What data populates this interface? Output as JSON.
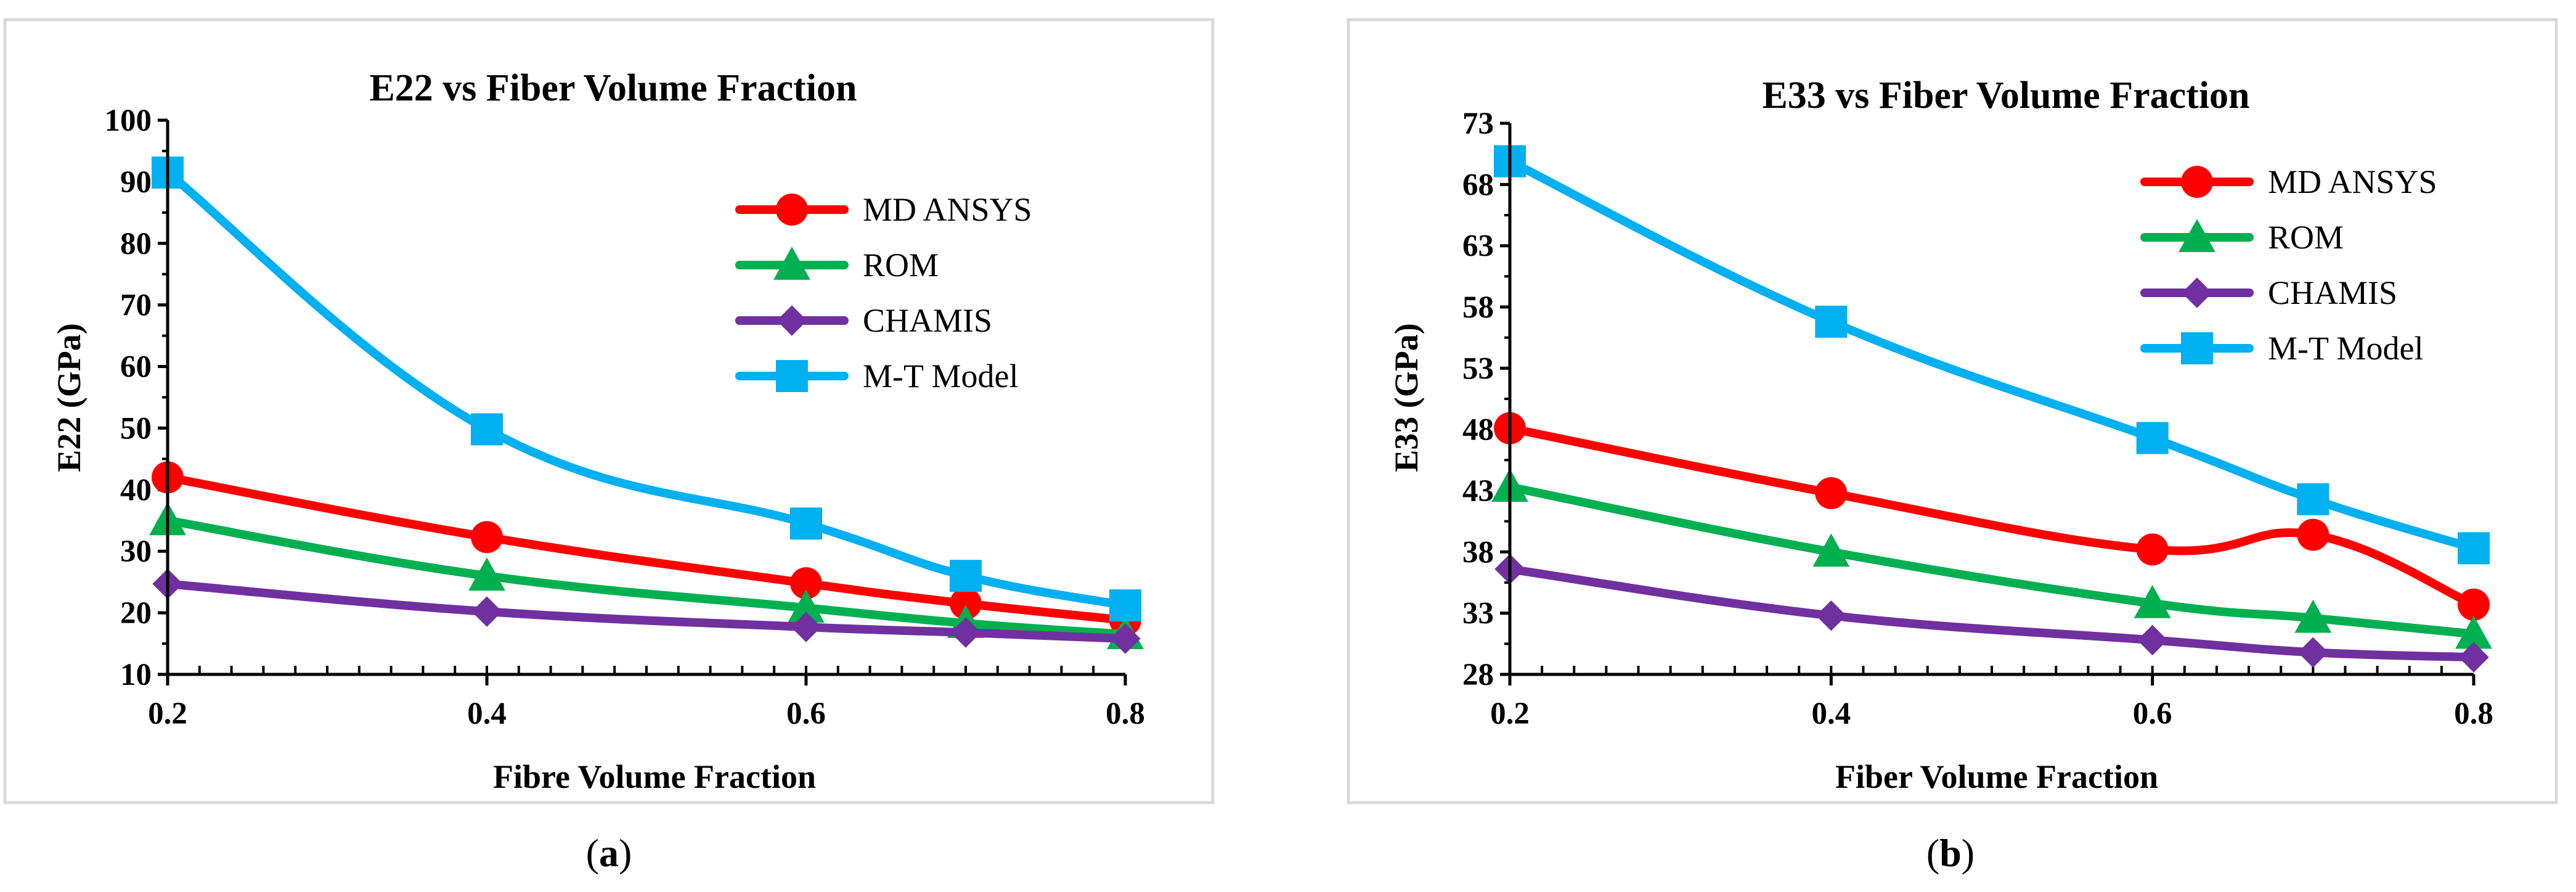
{
  "figure": {
    "captions": [
      {
        "open": "(",
        "letter": "a",
        "close": ")"
      },
      {
        "open": "(",
        "letter": "b",
        "close": ")"
      }
    ]
  },
  "chart_data": [
    {
      "type": "line",
      "title": "E22 vs Fiber Volume Fraction",
      "xlabel": "Fibre Volume Fraction",
      "ylabel": "E22 (GPa)",
      "xlim": [
        0.2,
        0.8
      ],
      "ylim": [
        10,
        100
      ],
      "x_ticks": [
        0.2,
        0.4,
        0.6,
        0.8
      ],
      "y_ticks": [
        10,
        20,
        30,
        40,
        50,
        60,
        70,
        80,
        90,
        100
      ],
      "legend_position": "top-right",
      "series": [
        {
          "name": "MD ANSYS",
          "color": "#ff0000",
          "marker": "circle",
          "x": [
            0.2,
            0.4,
            0.6,
            0.7,
            0.8
          ],
          "y": [
            42,
            32.3,
            24.8,
            21.5,
            18.8
          ]
        },
        {
          "name": "ROM",
          "color": "#00b050",
          "marker": "triangle",
          "x": [
            0.2,
            0.4,
            0.6,
            0.7,
            0.8
          ],
          "y": [
            35,
            26,
            20.8,
            18.3,
            16.5
          ]
        },
        {
          "name": "CHAMIS",
          "color": "#7030a0",
          "marker": "diamond",
          "x": [
            0.2,
            0.4,
            0.6,
            0.7,
            0.8
          ],
          "y": [
            24.7,
            20.2,
            17.7,
            16.8,
            15.8
          ]
        },
        {
          "name": "M-T Model",
          "color": "#00b0f0",
          "marker": "square",
          "x": [
            0.2,
            0.4,
            0.6,
            0.7,
            0.8
          ],
          "y": [
            91.5,
            49.8,
            34.5,
            26,
            21.2
          ]
        }
      ]
    },
    {
      "type": "line",
      "title": "E33 vs Fiber Volume Fraction",
      "xlabel": "Fiber Volume Fraction",
      "ylabel": "E33 (GPa)",
      "xlim": [
        0.2,
        0.8
      ],
      "ylim": [
        28,
        73
      ],
      "x_ticks": [
        0.2,
        0.4,
        0.6,
        0.8
      ],
      "y_ticks": [
        28,
        33,
        38,
        43,
        48,
        53,
        58,
        63,
        68,
        73
      ],
      "legend_position": "top-right",
      "series": [
        {
          "name": "MD ANSYS",
          "color": "#ff0000",
          "marker": "circle",
          "x": [
            0.2,
            0.4,
            0.6,
            0.7,
            0.8
          ],
          "y": [
            48.1,
            42.8,
            38.2,
            39.4,
            33.7
          ]
        },
        {
          "name": "ROM",
          "color": "#00b050",
          "marker": "triangle",
          "x": [
            0.2,
            0.4,
            0.6,
            0.7,
            0.8
          ],
          "y": [
            43.3,
            38,
            33.8,
            32.6,
            31.3
          ]
        },
        {
          "name": "CHAMIS",
          "color": "#7030a0",
          "marker": "diamond",
          "x": [
            0.2,
            0.4,
            0.6,
            0.7,
            0.8
          ],
          "y": [
            36.6,
            32.8,
            30.8,
            29.8,
            29.4
          ]
        },
        {
          "name": "M-T Model",
          "color": "#00b0f0",
          "marker": "square",
          "x": [
            0.2,
            0.4,
            0.6,
            0.7,
            0.8
          ],
          "y": [
            69.9,
            56.8,
            47.3,
            42.3,
            38.3
          ]
        }
      ]
    }
  ]
}
